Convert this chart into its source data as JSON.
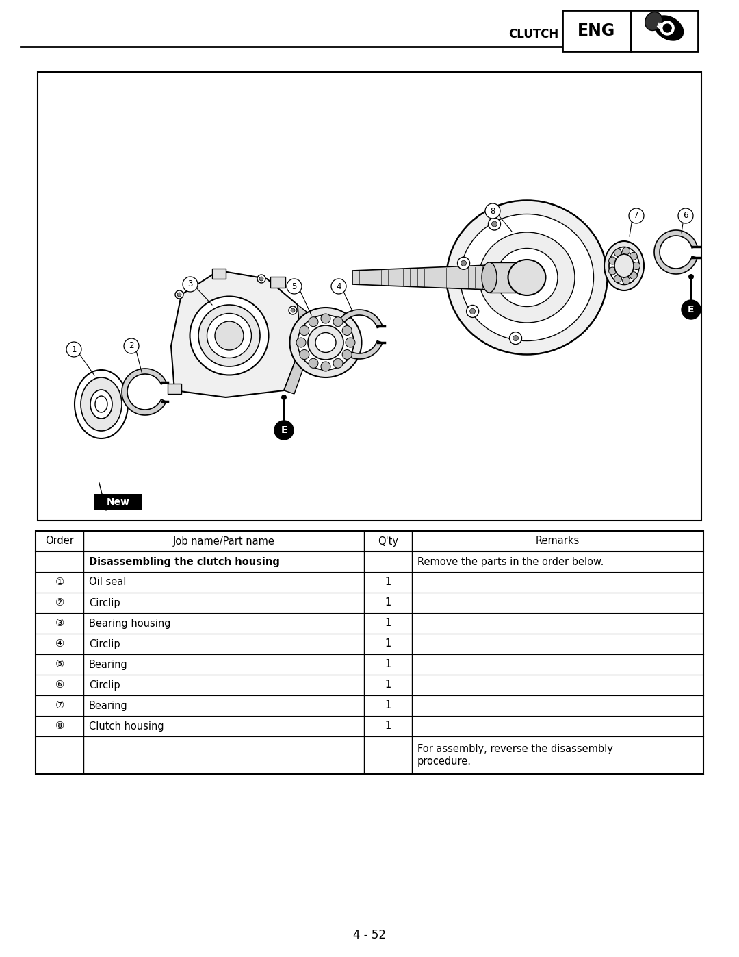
{
  "bg_color": "#ffffff",
  "page_number": "4 - 52",
  "table": {
    "headers": [
      "Order",
      "Job name/Part name",
      "Q'ty",
      "Remarks"
    ],
    "bold_row": "Disassembling the clutch housing",
    "rows": [
      [
        "",
        "Disassembling the clutch housing",
        "",
        "Remove the parts in the order below."
      ],
      [
        "①",
        "Oil seal",
        "1",
        ""
      ],
      [
        "②",
        "Circlip",
        "1",
        ""
      ],
      [
        "③",
        "Bearing housing",
        "1",
        ""
      ],
      [
        "④",
        "Circlip",
        "1",
        ""
      ],
      [
        "⑤",
        "Bearing",
        "1",
        ""
      ],
      [
        "⑥",
        "Circlip",
        "1",
        ""
      ],
      [
        "⑦",
        "Bearing",
        "1",
        ""
      ],
      [
        "⑧",
        "Clutch housing",
        "1",
        ""
      ],
      [
        "",
        "",
        "",
        "For assembly, reverse the disassembly\nprocedure."
      ]
    ]
  }
}
